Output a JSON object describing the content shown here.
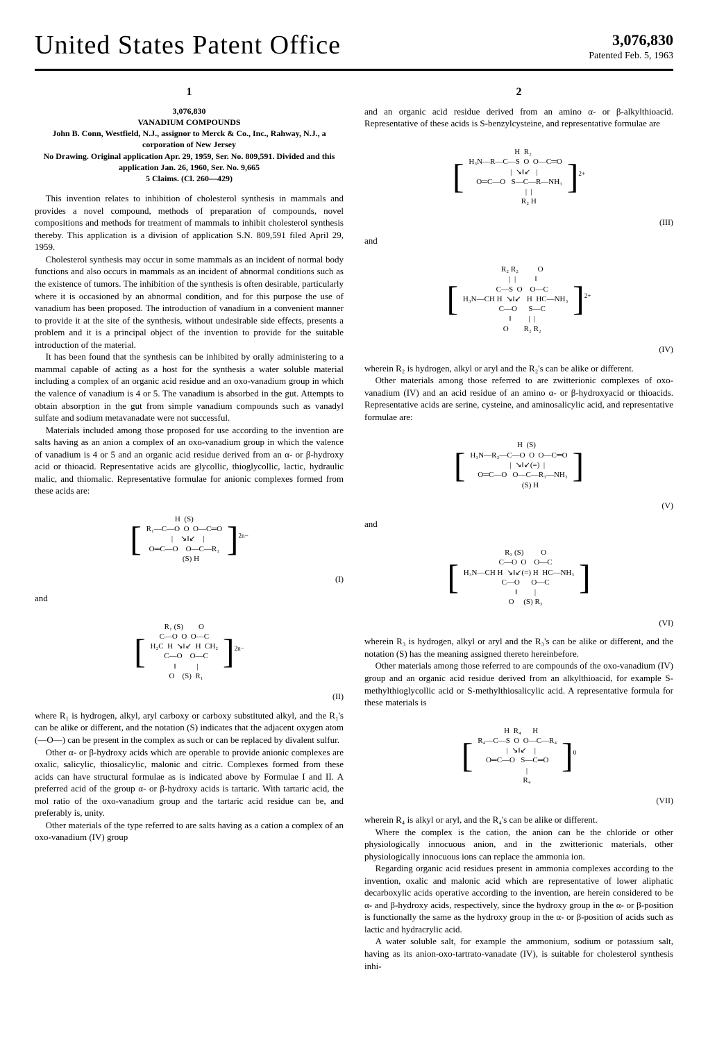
{
  "header": {
    "title": "United States Patent Office",
    "patent_number": "3,076,830",
    "patent_date": "Patented Feb. 5, 1963"
  },
  "column1": {
    "number": "1",
    "meta": {
      "num": "3,076,830",
      "title": "VANADIUM COMPOUNDS",
      "author": "John B. Conn, Westfield, N.J., assignor to Merck & Co., Inc., Rahway, N.J., a corporation of New Jersey",
      "filing": "No Drawing. Original application Apr. 29, 1959, Ser. No. 809,591. Divided and this application Jan. 26, 1960, Ser. No. 9,665",
      "claims": "5 Claims. (Cl. 260—429)"
    },
    "p1": "This invention relates to inhibition of cholesterol synthesis in mammals and provides a novel compound, methods of preparation of compounds, novel compositions and methods for treatment of mammals to inhibit cholesterol synthesis thereby. This application is a division of application S.N. 809,591 filed April 29, 1959.",
    "p2": "Cholesterol synthesis may occur in some mammals as an incident of normal body functions and also occurs in mammals as an incident of abnormal conditions such as the existence of tumors. The inhibition of the synthesis is often desirable, particularly where it is occasioned by an abnormal condition, and for this purpose the use of vanadium has been proposed. The introduction of vanadium in a convenient manner to provide it at the site of the synthesis, without undesirable side effects, presents a problem and it is a principal object of the invention to provide for the suitable introduction of the material.",
    "p3": "It has been found that the synthesis can be inhibited by orally administering to a mammal capable of acting as a host for the synthesis a water soluble material including a complex of an organic acid residue and an oxo-vanadium group in which the valence of vanadium is 4 or 5. The vanadium is absorbed in the gut. Attempts to obtain absorption in the gut from simple vanadium compounds such as vanadyl sulfate and sodium metavanadate were not successful.",
    "p4": "Materials included among those proposed for use according to the invention are salts having as an anion a complex of an oxo-vanadium group in which the valence of vanadium is 4 or 5 and an organic acid residue derived from an α- or β-hydroxy acid or thioacid. Representative acids are glycollic, thioglycollic, lactic, hydraulic malic, and thiomalic. Representative formulae for anionic complexes formed from these acids are:",
    "formula1_content": "H  (S)\nR₁—C—O  O  O—C═O\n    |    ↘‖↙    |\nO═C—O    O—C—R₁\n       (S) H",
    "formula1_charge": "2n−",
    "formula1_label": "(I)",
    "and1": "and",
    "formula2_content": "R₁ (S)        O\nC—O  O  O—C\nH₂C  H  ↘‖↙  H  CH₂\n  C—O    O—C\n  ‖           |\n  O    (S)  R₁",
    "formula2_charge": "2n−",
    "formula2_label": "(II)",
    "p5": "where R₁ is hydrogen, alkyl, aryl carboxy or carboxy substituted alkyl, and the R₁'s can be alike or different, and the notation (S) indicates that the adjacent oxygen atom (—O—) can be present in the complex as such or can be replaced by divalent sulfur.",
    "p6": "Other α- or β-hydroxy acids which are operable to provide anionic complexes are oxalic, salicylic, thiosalicylic, malonic and citric. Complexes formed from these acids can have structural formulae as is indicated above by Formulae I and II. A preferred acid of the group α- or β-hydroxy acids is tartaric. With tartaric acid, the mol ratio of the oxo-vanadium group and the tartaric acid residue can be, and preferably is, unity.",
    "p7": "Other materials of the type referred to are salts having as a cation a complex of an oxo-vanadium (IV) group"
  },
  "column2": {
    "number": "2",
    "p1": "and an organic acid residue derived from an amino α- or β-alkylthioacid. Representative of these acids is S-benzylcysteine, and representative formulae are",
    "formula3_content": "        H  R₂\nH₃N—R—C—S  O  O—C═O\n         |  ↘‖↙   |\n    O═C—O   S—C—R—NH₃\n              |  |\n              R₂ H",
    "formula3_charge": "2+",
    "formula3_label": "(III)",
    "and1": "and",
    "formula4_content": "       R₂ R₂          O\n        |  |          ‖\n       C—S  O    O—C\nH₃N—CH H  ↘‖↙   H  HC—NH₃\n       C—O      S—C\n       ‖         |  |\n       O        R₂ R₂",
    "formula4_charge": "2+",
    "formula4_label": "(IV)",
    "p2": "wherein R₂ is hydrogen, alkyl or aryl and the R₂'s can be alike or different.",
    "p3": "Other materials among those referred to are zwitterionic complexes of oxo-vanadium (IV) and an acid residue of an amino α- or β-hydroxyacid or thioacids. Representative acids are serine, cysteine, and aminosalicylic acid, and representative formulae are:",
    "formula5_content": "        H  (S)\nH₃N—R₃—C—O  O  O—C═O\n         |  ↘‖↙(=)  |\n    O═C—O   O—C—R₃—NH₃\n            (S) H",
    "formula5_label": "(V)",
    "and2": "and",
    "formula6_content": "       R₃ (S)         O\n       C—O  O    O—C\nH₃N—CH H  ↘‖↙(=) H  HC—NH₃\n       C—O      O—C\n       ‖         |\n       O     (S) R₃",
    "formula6_label": "(VI)",
    "p4": "wherein R₃ is hydrogen, alkyl or aryl and the R₃'s can be alike or different, and the notation (S) has the meaning assigned thereto hereinbefore.",
    "p5": "Other materials among those referred to are compounds of the oxo-vanadium (IV) group and an organic acid residue derived from an alkylthioacid, for example S-methylthioglycollic acid or S-methylthiosalicylic acid. A representative formula for these materials is",
    "formula7_content": "    H  R₄      H\nR₄—C—S  O  O—C—R₄\n    |  ↘‖↙    |\nO═C—O   S—C═O\n          |\n          R₄",
    "formula7_charge": "0",
    "formula7_label": "(VII)",
    "p6": "wherein R₄ is alkyl or aryl, and the R₄'s can be alike or different.",
    "p7": "Where the complex is the cation, the anion can be the chloride or other physiologically innocuous anion, and in the zwitterionic materials, other physiologically innocuous ions can replace the ammonia ion.",
    "p8": "Regarding organic acid residues present in ammonia complexes according to the invention, oxalic and malonic acid which are representative of lower aliphatic decarboxylic acids operative according to the invention, are herein considered to be α- and β-hydroxy acids, respectively, since the hydroxy group in the α- or β-position is functionally the same as the hydroxy group in the α- or β-position of acids such as lactic and hydracrylic acid.",
    "p9": "A water soluble salt, for example the ammonium, sodium or potassium salt, having as its anion-oxo-tartrato-vanadate (IV), is suitable for cholesterol synthesis inhi-"
  },
  "line_numbers": [
    "5",
    "10",
    "15",
    "20",
    "25",
    "30",
    "35",
    "40",
    "45",
    "50",
    "55",
    "60",
    "65",
    "70"
  ]
}
